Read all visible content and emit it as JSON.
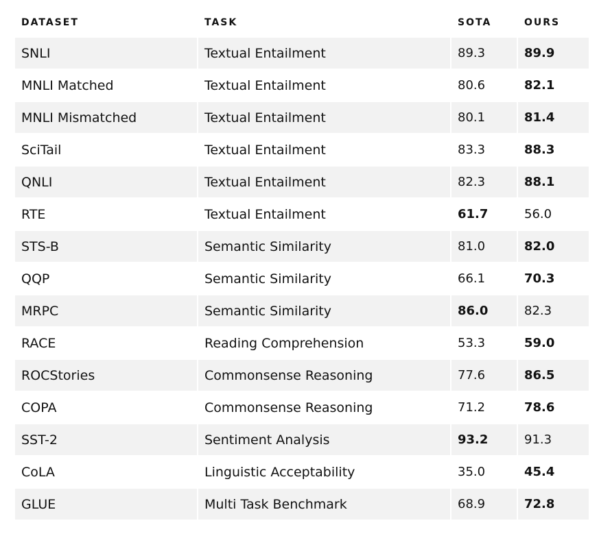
{
  "headers": {
    "dataset": "DATASET",
    "task": "TASK",
    "sota": "SOTA",
    "ours": "OURS"
  },
  "rows": [
    {
      "dataset": "SNLI",
      "task": "Textual Entailment",
      "sota": "89.3",
      "ours": "89.9",
      "best": "ours"
    },
    {
      "dataset": "MNLI Matched",
      "task": "Textual Entailment",
      "sota": "80.6",
      "ours": "82.1",
      "best": "ours"
    },
    {
      "dataset": "MNLI Mismatched",
      "task": "Textual Entailment",
      "sota": "80.1",
      "ours": "81.4",
      "best": "ours"
    },
    {
      "dataset": "SciTail",
      "task": "Textual Entailment",
      "sota": "83.3",
      "ours": "88.3",
      "best": "ours"
    },
    {
      "dataset": "QNLI",
      "task": "Textual Entailment",
      "sota": "82.3",
      "ours": "88.1",
      "best": "ours"
    },
    {
      "dataset": "RTE",
      "task": "Textual Entailment",
      "sota": "61.7",
      "ours": "56.0",
      "best": "sota"
    },
    {
      "dataset": "STS-B",
      "task": "Semantic Similarity",
      "sota": "81.0",
      "ours": "82.0",
      "best": "ours"
    },
    {
      "dataset": "QQP",
      "task": "Semantic Similarity",
      "sota": "66.1",
      "ours": "70.3",
      "best": "ours"
    },
    {
      "dataset": "MRPC",
      "task": "Semantic Similarity",
      "sota": "86.0",
      "ours": "82.3",
      "best": "sota"
    },
    {
      "dataset": "RACE",
      "task": "Reading Comprehension",
      "sota": "53.3",
      "ours": "59.0",
      "best": "ours"
    },
    {
      "dataset": "ROCStories",
      "task": "Commonsense Reasoning",
      "sota": "77.6",
      "ours": "86.5",
      "best": "ours"
    },
    {
      "dataset": "COPA",
      "task": "Commonsense Reasoning",
      "sota": "71.2",
      "ours": "78.6",
      "best": "ours"
    },
    {
      "dataset": "SST-2",
      "task": "Sentiment Analysis",
      "sota": "93.2",
      "ours": "91.3",
      "best": "sota"
    },
    {
      "dataset": "CoLA",
      "task": "Linguistic Acceptability",
      "sota": "35.0",
      "ours": "45.4",
      "best": "ours"
    },
    {
      "dataset": "GLUE",
      "task": "Multi Task Benchmark",
      "sota": "68.9",
      "ours": "72.8",
      "best": "ours"
    }
  ]
}
